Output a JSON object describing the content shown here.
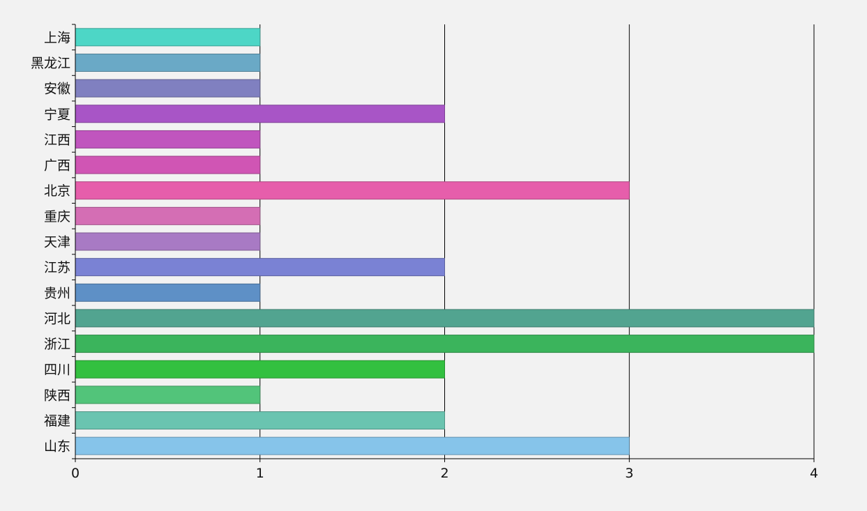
{
  "chart_data": {
    "type": "bar",
    "orientation": "horizontal",
    "categories": [
      "上海",
      "黑龙江",
      "安徽",
      "宁夏",
      "江西",
      "广西",
      "北京",
      "重庆",
      "天津",
      "江苏",
      "贵州",
      "河北",
      "浙江",
      "四川",
      "陕西",
      "福建",
      "山东"
    ],
    "values": [
      1,
      1,
      1,
      2,
      1,
      1,
      3,
      1,
      1,
      2,
      1,
      4,
      4,
      2,
      1,
      2,
      3
    ],
    "colors": [
      "#4dd6c6",
      "#6aa9c6",
      "#8080c0",
      "#a855c6",
      "#c055be",
      "#d055b4",
      "#e65eab",
      "#d46eb4",
      "#a87ac4",
      "#7a82d4",
      "#5e90c6",
      "#52a490",
      "#3bb45c",
      "#33c040",
      "#52c47a",
      "#6ac4b0",
      "#86c4ea"
    ],
    "xlim": [
      0,
      4
    ],
    "x_ticks": [
      "0",
      "1",
      "2",
      "3",
      "4"
    ],
    "grid": true,
    "title": "",
    "xlabel": "",
    "ylabel": ""
  }
}
